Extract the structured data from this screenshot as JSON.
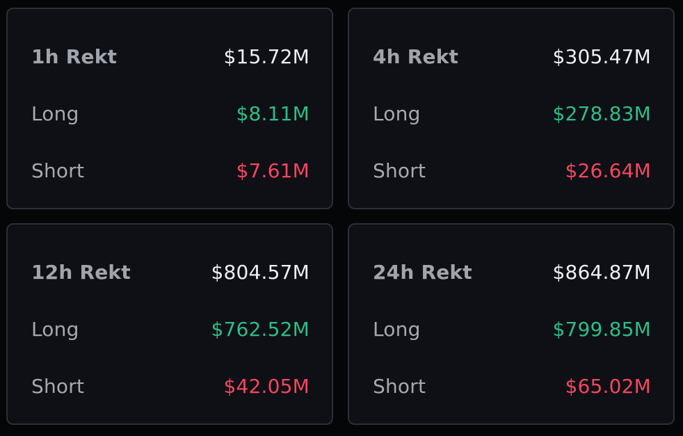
{
  "colors": {
    "background": "#050608",
    "card_background": "#0e1016",
    "card_border": "#2b2f37",
    "label": "#a6a9b0",
    "total": "#eef0f3",
    "long": "#2ebd85",
    "short": "#f6465d"
  },
  "cards": [
    {
      "title": "1h Rekt",
      "total": "$15.72M",
      "long_label": "Long",
      "long": "$8.11M",
      "short_label": "Short",
      "short": "$7.61M"
    },
    {
      "title": "4h Rekt",
      "total": "$305.47M",
      "long_label": "Long",
      "long": "$278.83M",
      "short_label": "Short",
      "short": "$26.64M"
    },
    {
      "title": "12h Rekt",
      "total": "$804.57M",
      "long_label": "Long",
      "long": "$762.52M",
      "short_label": "Short",
      "short": "$42.05M"
    },
    {
      "title": "24h Rekt",
      "total": "$864.87M",
      "long_label": "Long",
      "long": "$799.85M",
      "short_label": "Short",
      "short": "$65.02M"
    }
  ]
}
